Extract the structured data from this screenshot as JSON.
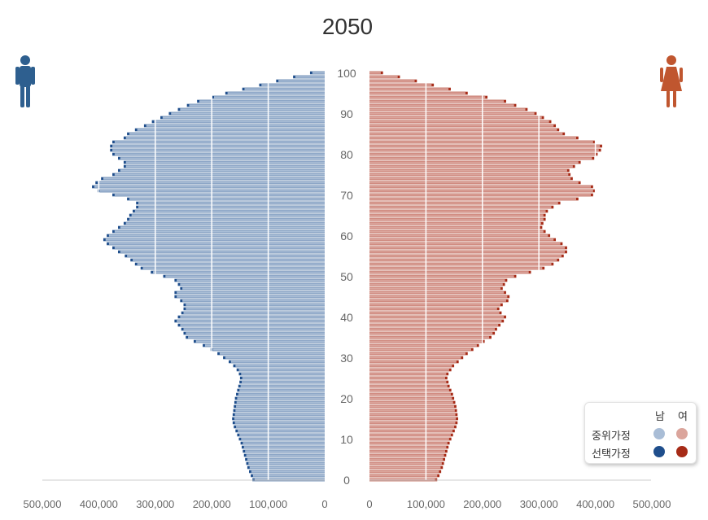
{
  "chart_data": {
    "type": "bar",
    "title": "2050",
    "orientation": "horizontal-population-pyramid",
    "male_axis_ticks": [
      "500,000",
      "400,000",
      "300,000",
      "200,000",
      "100,000",
      "0"
    ],
    "female_axis_ticks": [
      "0",
      "100,000",
      "200,000",
      "300,000",
      "400,000",
      "500,000"
    ],
    "xlim": [
      0,
      500000
    ],
    "age_ticks": [
      "0",
      "10",
      "20",
      "30",
      "40",
      "50",
      "60",
      "70",
      "80",
      "90",
      "100"
    ],
    "ages": [
      0,
      1,
      2,
      3,
      4,
      5,
      6,
      7,
      8,
      9,
      10,
      11,
      12,
      13,
      14,
      15,
      16,
      17,
      18,
      19,
      20,
      21,
      22,
      23,
      24,
      25,
      26,
      27,
      28,
      29,
      30,
      31,
      32,
      33,
      34,
      35,
      36,
      37,
      38,
      39,
      40,
      41,
      42,
      43,
      44,
      45,
      46,
      47,
      48,
      49,
      50,
      51,
      52,
      53,
      54,
      55,
      56,
      57,
      58,
      59,
      60,
      61,
      62,
      63,
      64,
      65,
      66,
      67,
      68,
      69,
      70,
      71,
      72,
      73,
      74,
      75,
      76,
      77,
      78,
      79,
      80,
      81,
      82,
      83,
      84,
      85,
      86,
      87,
      88,
      89,
      90,
      91,
      92,
      93,
      94,
      95,
      96,
      97,
      98,
      99,
      100
    ],
    "series": [
      {
        "name": "중위가정 남",
        "side": "male",
        "color": "#a9bdd6",
        "values": [
          124000,
          127000,
          130000,
          133000,
          135000,
          137000,
          139000,
          141000,
          143000,
          145000,
          148000,
          151000,
          154000,
          157000,
          159000,
          160000,
          159000,
          158000,
          157000,
          156000,
          155000,
          153000,
          151000,
          149000,
          147000,
          146000,
          148000,
          152000,
          158000,
          166000,
          176000,
          186000,
          198000,
          212000,
          228000,
          242000,
          246000,
          250000,
          256000,
          262000,
          256000,
          250000,
          246000,
          246000,
          252000,
          262000,
          262000,
          252000,
          256000,
          262000,
          282000,
          304000,
          322000,
          332000,
          340000,
          350000,
          362000,
          372000,
          382000,
          388000,
          382000,
          372000,
          362000,
          352000,
          346000,
          342000,
          336000,
          330000,
          330000,
          346000,
          372000,
          398000,
          408000,
          402000,
          392000,
          372000,
          362000,
          352000,
          352000,
          362000,
          372000,
          376000,
          376000,
          372000,
          352000,
          346000,
          332000,
          316000,
          302000,
          287000,
          272000,
          256000,
          240000,
          222000,
          196000,
          172000,
          142000,
          112000,
          82000,
          52000,
          22000
        ]
      },
      {
        "name": "선택가정 남",
        "side": "male",
        "color": "#1f4e8c",
        "values": [
          128000,
          131000,
          134000,
          137000,
          139000,
          141000,
          143000,
          145000,
          147000,
          149000,
          152000,
          155000,
          158000,
          161000,
          163000,
          164000,
          163000,
          162000,
          161000,
          160000,
          159000,
          157000,
          155000,
          153000,
          151000,
          150000,
          152000,
          156000,
          162000,
          170000,
          180000,
          190000,
          202000,
          216000,
          232000,
          246000,
          250000,
          254000,
          260000,
          266000,
          260000,
          254000,
          250000,
          250000,
          256000,
          266000,
          266000,
          256000,
          260000,
          266000,
          286000,
          308000,
          326000,
          336000,
          344000,
          354000,
          366000,
          376000,
          386000,
          392000,
          386000,
          376000,
          366000,
          356000,
          350000,
          346000,
          340000,
          334000,
          334000,
          350000,
          376000,
          402000,
          412000,
          406000,
          396000,
          376000,
          366000,
          356000,
          356000,
          366000,
          376000,
          380000,
          380000,
          376000,
          356000,
          350000,
          336000,
          320000,
          306000,
          291000,
          276000,
          260000,
          244000,
          226000,
          200000,
          176000,
          146000,
          116000,
          86000,
          56000,
          26000
        ]
      },
      {
        "name": "중위가정 여",
        "side": "female",
        "color": "#dba59c",
        "values": [
          116000,
          120000,
          123000,
          126000,
          128000,
          130000,
          132000,
          134000,
          136000,
          138000,
          141000,
          144000,
          147000,
          150000,
          152000,
          153000,
          152000,
          151000,
          150000,
          148000,
          146000,
          144000,
          141000,
          138000,
          136000,
          134000,
          136000,
          141000,
          146000,
          154000,
          162000,
          170000,
          180000,
          190000,
          200000,
          212000,
          218000,
          222000,
          228000,
          234000,
          238000,
          230000,
          226000,
          232000,
          242000,
          244000,
          238000,
          232000,
          236000,
          240000,
          256000,
          282000,
          306000,
          322000,
          332000,
          340000,
          346000,
          346000,
          338000,
          326000,
          316000,
          308000,
          302000,
          304000,
          308000,
          308000,
          312000,
          322000,
          334000,
          366000,
          392000,
          396000,
          392000,
          370000,
          356000,
          352000,
          350000,
          360000,
          370000,
          394000,
          400000,
          406000,
          408000,
          396000,
          366000,
          342000,
          332000,
          326000,
          318000,
          305000,
          292000,
          276000,
          256000,
          238000,
          205000,
          170000,
          140000,
          110000,
          80000,
          50000,
          20000
        ]
      },
      {
        "name": "선택가정 여",
        "side": "female",
        "color": "#a62b17",
        "values": [
          120000,
          124000,
          127000,
          130000,
          132000,
          134000,
          136000,
          138000,
          140000,
          142000,
          145000,
          148000,
          151000,
          154000,
          156000,
          157000,
          156000,
          155000,
          154000,
          152000,
          150000,
          148000,
          145000,
          142000,
          140000,
          138000,
          140000,
          145000,
          150000,
          158000,
          166000,
          174000,
          184000,
          194000,
          204000,
          216000,
          222000,
          226000,
          232000,
          238000,
          242000,
          234000,
          230000,
          236000,
          246000,
          248000,
          242000,
          236000,
          240000,
          244000,
          260000,
          286000,
          310000,
          326000,
          336000,
          344000,
          350000,
          350000,
          342000,
          330000,
          320000,
          312000,
          306000,
          308000,
          312000,
          312000,
          316000,
          326000,
          338000,
          370000,
          396000,
          400000,
          396000,
          374000,
          360000,
          356000,
          354000,
          364000,
          374000,
          398000,
          404000,
          410000,
          412000,
          400000,
          370000,
          346000,
          336000,
          330000,
          322000,
          309000,
          296000,
          280000,
          260000,
          242000,
          209000,
          174000,
          144000,
          114000,
          84000,
          54000,
          24000
        ]
      }
    ],
    "legend": {
      "position": "bottom-right",
      "col_male": "남",
      "col_female": "여",
      "row1": "중위가정",
      "row2": "선택가정"
    },
    "colors": {
      "male_light": "#a9bdd6",
      "male_dark": "#1f4e8c",
      "female_light": "#dba59c",
      "female_dark": "#a62b17",
      "male_icon": "#2e5f8f",
      "female_icon": "#c0562f"
    }
  }
}
